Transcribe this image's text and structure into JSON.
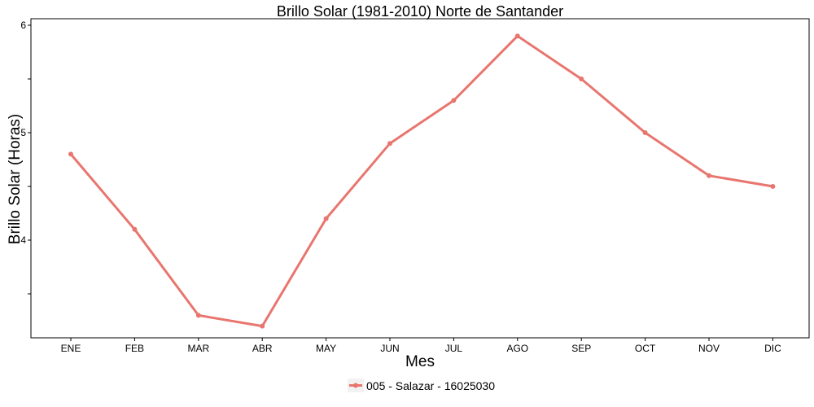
{
  "chart_data": {
    "type": "line",
    "title": "Brillo Solar (1981-2010)  Norte de Santander",
    "xlabel": "Mes",
    "ylabel": "Brillo Solar (Horas)",
    "categories": [
      "ENE",
      "FEB",
      "MAR",
      "ABR",
      "MAY",
      "JUN",
      "JUL",
      "AGO",
      "SEP",
      "OCT",
      "NOV",
      "DIC"
    ],
    "series": [
      {
        "name": "005 - Salazar - 16025030",
        "color": "#e8766f",
        "values": [
          4.8,
          4.1,
          3.3,
          3.2,
          4.2,
          4.9,
          5.3,
          5.9,
          5.5,
          5.0,
          4.6,
          4.5
        ]
      }
    ],
    "ylim": [
      3.1,
      6.0
    ],
    "yticks": [
      4,
      5,
      6
    ],
    "grid": false,
    "legend_position": "bottom"
  }
}
